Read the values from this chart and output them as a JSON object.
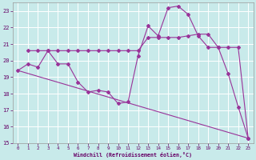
{
  "background_color": "#c8eaea",
  "grid_color": "#b8dede",
  "line_color": "#993399",
  "xlabel": "Windchill (Refroidissement éolien,°C)",
  "xlim": [
    -0.5,
    23.5
  ],
  "ylim": [
    15,
    23.5
  ],
  "yticks": [
    15,
    16,
    17,
    18,
    19,
    20,
    21,
    22,
    23
  ],
  "xticks": [
    0,
    1,
    2,
    3,
    4,
    5,
    6,
    7,
    8,
    9,
    10,
    11,
    12,
    13,
    14,
    15,
    16,
    17,
    18,
    19,
    20,
    21,
    22,
    23
  ],
  "series": [
    {
      "x": [
        0,
        1,
        2,
        3,
        4,
        5,
        6,
        7,
        8,
        9,
        10,
        11,
        12,
        13,
        14,
        15,
        16,
        17,
        18,
        19,
        20,
        21,
        22,
        23
      ],
      "y": [
        19.4,
        19.8,
        19.6,
        20.6,
        19.8,
        19.8,
        18.7,
        18.1,
        18.2,
        18.1,
        17.4,
        17.5,
        20.3,
        22.1,
        21.5,
        23.2,
        23.3,
        22.8,
        21.5,
        20.8,
        20.8,
        19.2,
        17.2,
        15.3
      ],
      "has_markers": true
    },
    {
      "x": [
        1,
        2,
        3,
        4,
        5,
        6,
        7,
        8,
        9,
        10,
        11,
        12,
        13,
        14,
        15,
        16,
        17,
        18,
        19,
        20,
        21,
        22,
        23
      ],
      "y": [
        20.6,
        20.6,
        20.6,
        20.6,
        20.6,
        20.6,
        20.6,
        20.6,
        20.6,
        20.6,
        20.6,
        20.6,
        21.4,
        21.4,
        21.4,
        21.4,
        21.5,
        21.6,
        21.6,
        20.8,
        20.8,
        20.8,
        15.3
      ],
      "has_markers": true
    },
    {
      "x": [
        0,
        23
      ],
      "y": [
        19.4,
        15.3
      ],
      "has_markers": false
    }
  ]
}
